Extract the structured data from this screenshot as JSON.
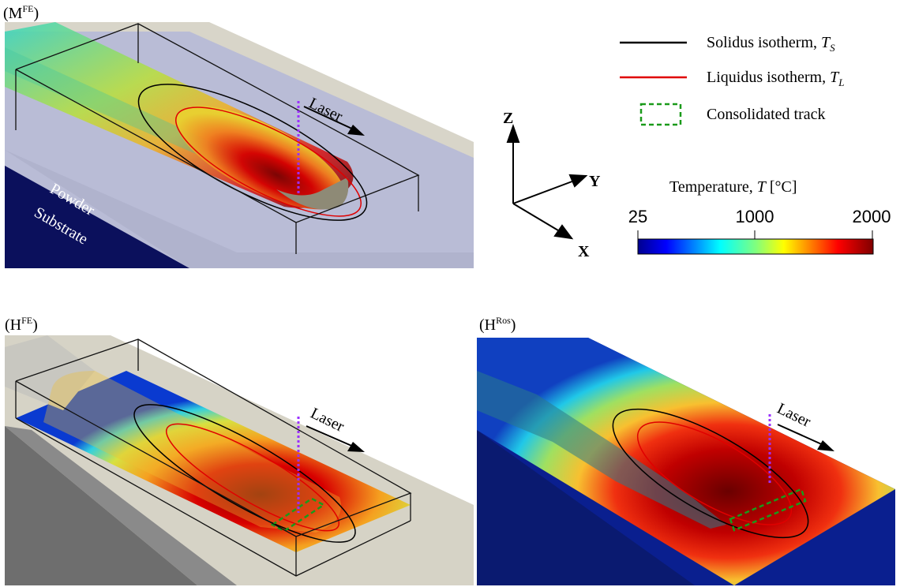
{
  "panels": [
    {
      "id": "MFE",
      "base": "(M",
      "sup": "FE",
      "close": ")"
    },
    {
      "id": "HFE",
      "base": "(H",
      "sup": "FE",
      "close": ")"
    },
    {
      "id": "HRos",
      "base": "(H",
      "sup": "Ros",
      "close": ")"
    }
  ],
  "labels": {
    "laser": "Laser",
    "powder": "Powder",
    "substrate": "Substrate"
  },
  "legend": {
    "solidus": {
      "text": "Solidus isotherm, ",
      "sym": "T",
      "sub": "S",
      "color": "#000000"
    },
    "liquidus": {
      "text": "Liquidus isotherm, ",
      "sym": "T",
      "sub": "L",
      "color": "#e00000"
    },
    "track": {
      "text": "Consolidated track",
      "color": "#1a9a1a"
    }
  },
  "axes": {
    "z": "Z",
    "y": "Y",
    "x": "X"
  },
  "colorbar": {
    "title_text": "Temperature, ",
    "title_sym": "T",
    "title_unit": " [°C]",
    "min": "25",
    "mid": "1000",
    "max": "2000"
  },
  "colors": {
    "laser_path": "#9b30ff",
    "powder_plate": "#b8bbd8",
    "substrate_dark": "#0a0e5a",
    "bed_gray": "#d6d3c6"
  }
}
